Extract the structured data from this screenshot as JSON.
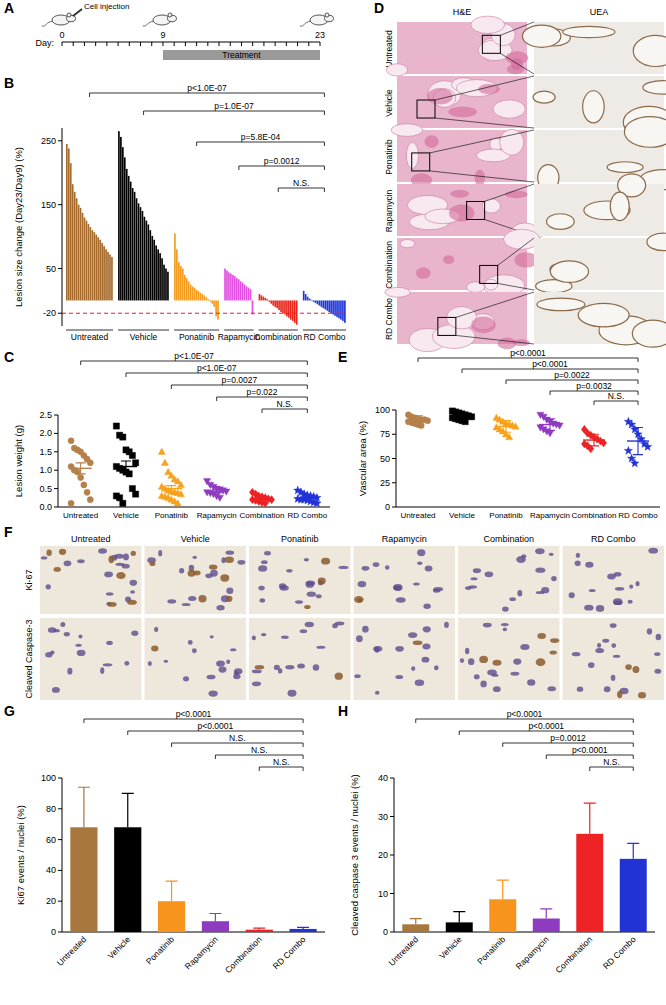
{
  "panel_labels": [
    "A",
    "B",
    "C",
    "D",
    "E",
    "F",
    "G",
    "H"
  ],
  "timeline": {
    "injection_label": "Cell injection",
    "axis_label": "Day:",
    "xlim": [
      0,
      23
    ],
    "xticks": [
      0,
      1,
      2,
      3,
      4,
      5,
      6,
      7,
      8,
      9,
      10,
      11,
      12,
      13,
      14,
      15,
      16,
      17,
      18,
      19,
      20,
      21,
      22,
      23
    ],
    "labels": [
      0,
      9,
      23
    ],
    "treatment": [
      9,
      23
    ],
    "treatment_label": "Treatment"
  },
  "images": {
    "D": {
      "columns": [
        "H&E",
        "UEA"
      ],
      "rows": [
        "Untreated",
        "Vehicle",
        "Ponatinib",
        "Rapamycin",
        "Combination",
        "RD Combo"
      ]
    },
    "F": {
      "columns": [
        "Untreated",
        "Vehicle",
        "Ponatinib",
        "Rapamycin",
        "Combination",
        "RD Combo"
      ],
      "rows": [
        "Ki-67",
        "Cleaved Caspase-3"
      ]
    }
  },
  "chart_data": [
    {
      "type": "waterfall",
      "y_label": "Lesion size change (Day23/Day9) (%)",
      "ylim": [
        -40,
        270
      ],
      "yticks": [
        -20,
        50,
        150,
        250
      ],
      "threshold": -20,
      "series": [
        {
          "name": "Untreated",
          "color": "#a66a2c",
          "values": [
            245,
            238,
            215,
            182,
            170,
            160,
            150,
            145,
            137,
            130,
            125,
            120,
            115,
            110,
            107,
            103,
            99,
            95,
            90,
            85,
            80,
            76,
            72,
            68
          ]
        },
        {
          "name": "Vehicle",
          "color": "#000000",
          "values": [
            265,
            256,
            240,
            224,
            206,
            195,
            186,
            176,
            170,
            160,
            152,
            146,
            140,
            131,
            125,
            119,
            110,
            101,
            95,
            86,
            80,
            74,
            66,
            56,
            50,
            45
          ]
        },
        {
          "name": "Ponatinib",
          "color": "#f29b1d",
          "values": [
            105,
            80,
            60,
            54,
            50,
            40,
            35,
            30,
            25,
            22,
            20,
            17,
            15,
            12,
            10,
            8,
            5,
            2,
            -2,
            -5,
            -10,
            -25,
            -30
          ]
        },
        {
          "name": "Rapamycin",
          "color": "#e04fe0",
          "values": [
            50,
            47,
            44,
            42,
            40,
            38,
            35,
            33,
            30,
            28,
            25,
            22,
            20,
            18,
            -22
          ]
        },
        {
          "name": "Combination",
          "color": "#e8261b",
          "values": [
            10,
            8,
            6,
            4,
            2,
            -2,
            -5,
            -8,
            -10,
            -12,
            -15,
            -18,
            -20,
            -22,
            -25,
            -27,
            -30,
            -32,
            -35,
            -38
          ]
        },
        {
          "name": "RD Combo",
          "color": "#1f36d9",
          "values": [
            15,
            10,
            6,
            3,
            1,
            -2,
            -4,
            -6,
            -8,
            -10,
            -12,
            -14,
            -16,
            -18,
            -20,
            -22,
            -24,
            -26,
            -28,
            -30,
            -32,
            -35
          ]
        }
      ],
      "comparisons": [
        {
          "from": "Untreated",
          "to": "RD Combo",
          "label": "p<1.0E-07"
        },
        {
          "from": "Vehicle",
          "to": "RD Combo",
          "label": "p=1.0E-07"
        },
        {
          "from": "Ponatinib",
          "to": "RD Combo",
          "label": "p=5.8E-04"
        },
        {
          "from": "Rapamycin",
          "to": "RD Combo",
          "label": "p=0.0012"
        },
        {
          "from": "Combination",
          "to": "RD Combo",
          "label": "N.S."
        }
      ]
    },
    {
      "type": "strip",
      "y_label": "Lesion weight (g)",
      "ylim": [
        0,
        2.5
      ],
      "yticks": [
        {
          "value": 0,
          "label": "0.0"
        },
        0.5,
        {
          "value": 1,
          "label": "1.0"
        },
        1.5,
        {
          "value": 2,
          "label": "2.0"
        },
        2.5
      ],
      "series": [
        {
          "name": "Untreated",
          "color": "#b5804a",
          "marker": "circle",
          "values": [
            1.8,
            1.6,
            1.55,
            1.5,
            1.4,
            1.3,
            1.2,
            1.1,
            1.0,
            0.95,
            0.8,
            0.6,
            0.4,
            0.2,
            0.1
          ],
          "mean": 1.05,
          "error": 0.15
        },
        {
          "name": "Vehicle",
          "color": "#000000",
          "marker": "square",
          "values": [
            2.2,
            1.95,
            1.9,
            1.55,
            1.5,
            1.4,
            1.2,
            1.1,
            1.05,
            1.0,
            0.95,
            0.9,
            0.5,
            0.35,
            0.3,
            0.25,
            0.1
          ],
          "mean": 1.1,
          "error": 0.15
        },
        {
          "name": "Ponatinib",
          "color": "#f7a21b",
          "marker": "triangle",
          "values": [
            1.5,
            1.2,
            0.95,
            0.85,
            0.75,
            0.7,
            0.6,
            0.55,
            0.5,
            0.45,
            0.42,
            0.4,
            0.38,
            0.35,
            0.3,
            0.28,
            0.25,
            0.2,
            0.15,
            0.1
          ],
          "mean": 0.5,
          "error": 0.08
        },
        {
          "name": "Rapamycin",
          "color": "#8e3bbf",
          "marker": "triangle-down",
          "values": [
            0.7,
            0.6,
            0.55,
            0.5,
            0.48,
            0.45,
            0.42,
            0.4,
            0.38,
            0.35,
            0.3,
            0.25
          ],
          "mean": 0.43,
          "error": 0.04
        },
        {
          "name": "Combination",
          "color": "#ec2224",
          "marker": "diamond",
          "values": [
            0.4,
            0.35,
            0.3,
            0.28,
            0.25,
            0.22,
            0.2,
            0.2,
            0.18,
            0.15,
            0.12,
            0.1
          ],
          "mean": 0.22,
          "error": 0.03
        },
        {
          "name": "RD Combo",
          "color": "#2233d6",
          "marker": "star",
          "values": [
            0.45,
            0.4,
            0.35,
            0.32,
            0.3,
            0.28,
            0.25,
            0.22,
            0.2,
            0.2,
            0.18,
            0.15,
            0.12,
            0.1
          ],
          "mean": 0.25,
          "error": 0.03
        }
      ],
      "comparisons": [
        {
          "from": "Untreated",
          "to": "RD Combo",
          "label": "p<1.0E-07"
        },
        {
          "from": "Vehicle",
          "to": "RD Combo",
          "label": "p<1.0E-07"
        },
        {
          "from": "Ponatinib",
          "to": "RD Combo",
          "label": "p=0.0027"
        },
        {
          "from": "Rapamycin",
          "to": "RD Combo",
          "label": "p=0.022"
        },
        {
          "from": "Combination",
          "to": "RD Combo",
          "label": "N.S."
        }
      ]
    },
    {
      "type": "strip",
      "y_label": "Vascular area (%)",
      "ylim": [
        0,
        100
      ],
      "yticks": [
        0,
        25,
        50,
        75,
        100
      ],
      "series": [
        {
          "name": "Untreated",
          "color": "#b5804a",
          "marker": "circle",
          "values": [
            95,
            93,
            92,
            91,
            90,
            90,
            89,
            88,
            87,
            86,
            85,
            84
          ],
          "mean": 90,
          "error": 4
        },
        {
          "name": "Vehicle",
          "color": "#000000",
          "marker": "square",
          "values": [
            99,
            98,
            97,
            96,
            95,
            94,
            93,
            92,
            91,
            90,
            89,
            88
          ],
          "mean": 94,
          "error": 3
        },
        {
          "name": "Ponatinib",
          "color": "#f7a21b",
          "marker": "triangle",
          "values": [
            92,
            90,
            88,
            86,
            85,
            84,
            83,
            82,
            80,
            78,
            75,
            72
          ],
          "mean": 83,
          "error": 6
        },
        {
          "name": "Rapamycin",
          "color": "#8e3bbf",
          "marker": "triangle-down",
          "values": [
            95,
            93,
            90,
            88,
            86,
            85,
            84,
            82,
            80,
            78,
            76
          ],
          "mean": 85,
          "error": 6
        },
        {
          "name": "Combination",
          "color": "#ec2224",
          "marker": "diamond",
          "values": [
            80,
            76,
            74,
            72,
            70,
            68,
            66,
            65,
            63,
            60
          ],
          "mean": 69,
          "error": 6
        },
        {
          "name": "RD Combo",
          "color": "#2233d6",
          "marker": "star",
          "values": [
            88,
            85,
            80,
            75,
            70,
            65,
            62,
            58,
            50,
            45
          ],
          "mean": 68,
          "error": 14
        }
      ],
      "comparisons": [
        {
          "from": "Untreated",
          "to": "RD Combo",
          "label": "p<0.0001"
        },
        {
          "from": "Vehicle",
          "to": "RD Combo",
          "label": "p<0.0001"
        },
        {
          "from": "Ponatinib",
          "to": "RD Combo",
          "label": "p=0.0022"
        },
        {
          "from": "Rapamycin",
          "to": "RD Combo",
          "label": "p=0.0032"
        },
        {
          "from": "Combination",
          "to": "RD Combo",
          "label": "N.S."
        }
      ]
    },
    {
      "type": "bar",
      "y_label": "Ki67 events / nuclei (%)",
      "ylim": [
        0,
        100
      ],
      "yticks": [
        0,
        20,
        40,
        60,
        80,
        100
      ],
      "categories": [
        "Untreated",
        "Vehicle",
        "Ponatinib",
        "Rapamycin",
        "Combination",
        "RD Combo"
      ],
      "values": [
        68,
        68,
        20,
        7,
        1.5,
        2
      ],
      "errors": [
        26,
        22,
        13,
        5,
        1,
        1
      ],
      "colors": [
        "#a8773e",
        "#000000",
        "#f7941d",
        "#8e3bbf",
        "#ec2224",
        "#2233d6"
      ],
      "comparisons": [
        {
          "from": "Untreated",
          "to": "RD Combo",
          "label": "p<0.0001"
        },
        {
          "from": "Vehicle",
          "to": "RD Combo",
          "label": "p<0.0001"
        },
        {
          "from": "Ponatinib",
          "to": "RD Combo",
          "label": "N.S."
        },
        {
          "from": "Rapamycin",
          "to": "RD Combo",
          "label": "N.S."
        },
        {
          "from": "Combination",
          "to": "RD Combo",
          "label": "N.S."
        }
      ]
    },
    {
      "type": "bar",
      "y_label": "Cleaved caspase 3 events / nuclei (%)",
      "ylim": [
        0,
        40
      ],
      "yticks": [
        0,
        10,
        20,
        30,
        40
      ],
      "categories": [
        "Untreated",
        "Vehicle",
        "Ponatinib",
        "Rapamycin",
        "Combination",
        "RD Combo"
      ],
      "values": [
        2,
        2.5,
        8.5,
        3.5,
        25.5,
        19
      ],
      "errors": [
        1.5,
        2.8,
        5,
        2.5,
        8,
        4
      ],
      "colors": [
        "#a8773e",
        "#000000",
        "#f7941d",
        "#8e3bbf",
        "#ec2224",
        "#2233d6"
      ],
      "comparisons": [
        {
          "from": "Untreated",
          "to": "RD Combo",
          "label": "p<0.0001"
        },
        {
          "from": "Vehicle",
          "to": "RD Combo",
          "label": "p<0.0001"
        },
        {
          "from": "Ponatinib",
          "to": "RD Combo",
          "label": "p=0.0012"
        },
        {
          "from": "Rapamycin",
          "to": "RD Combo",
          "label": "p<0.0001"
        },
        {
          "from": "Combination",
          "to": "RD Combo",
          "label": "N.S."
        }
      ]
    }
  ]
}
